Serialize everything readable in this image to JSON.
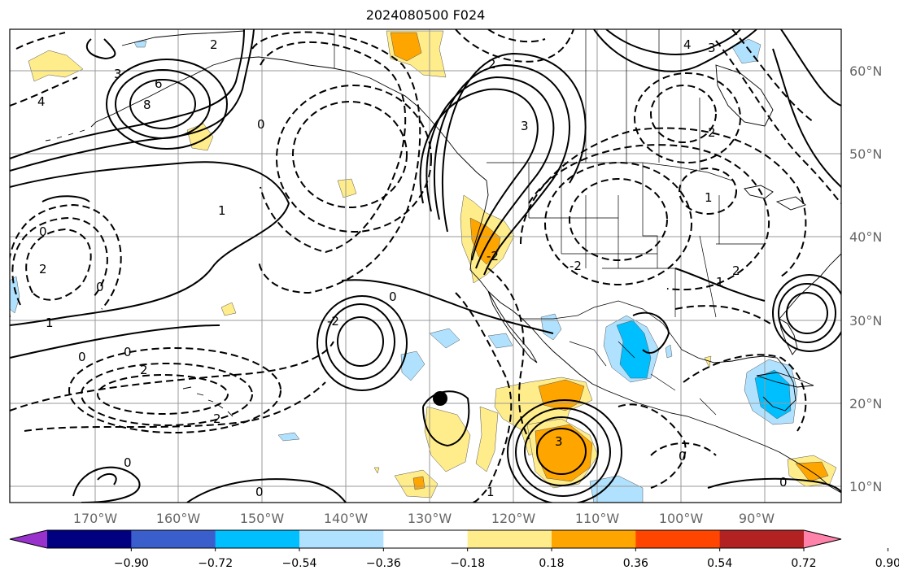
{
  "title": "2024080500 F024",
  "lon_ticks": [
    "170°W",
    "160°W",
    "150°W",
    "140°W",
    "130°W",
    "120°W",
    "110°W",
    "100°W",
    "90°W"
  ],
  "lat_ticks": [
    "60°N",
    "50°N",
    "40°N",
    "30°N",
    "20°N",
    "10°N"
  ],
  "colorbar": {
    "labels": [
      "−0.90",
      "−0.72",
      "−0.54",
      "−0.36",
      "−0.18",
      "0.18",
      "0.36",
      "0.54",
      "0.72",
      "0.90"
    ],
    "colors": [
      "#9932cc",
      "#000080",
      "#3a5fcd",
      "#00bfff",
      "#b0e2ff",
      "#ffffff",
      "#ffec8b",
      "#ffa500",
      "#ff4500",
      "#b22222",
      "#ff82ab"
    ]
  },
  "contour_labels": [
    "0",
    "0",
    "0",
    "0",
    "0",
    "0",
    "0",
    "0",
    "0",
    "0",
    "1",
    "1",
    "1",
    "1",
    "1",
    "2",
    "2",
    "2",
    "2",
    "2",
    "2",
    "2",
    "-2",
    "-2",
    "-2",
    "3",
    "3",
    "3",
    "3",
    "4",
    "4",
    "6",
    "8"
  ],
  "fill_colors": {
    "pos_light": "#ffec8b",
    "pos_mid": "#ffa500",
    "neg_light": "#b0e2ff",
    "neg_mid": "#00bfff"
  }
}
